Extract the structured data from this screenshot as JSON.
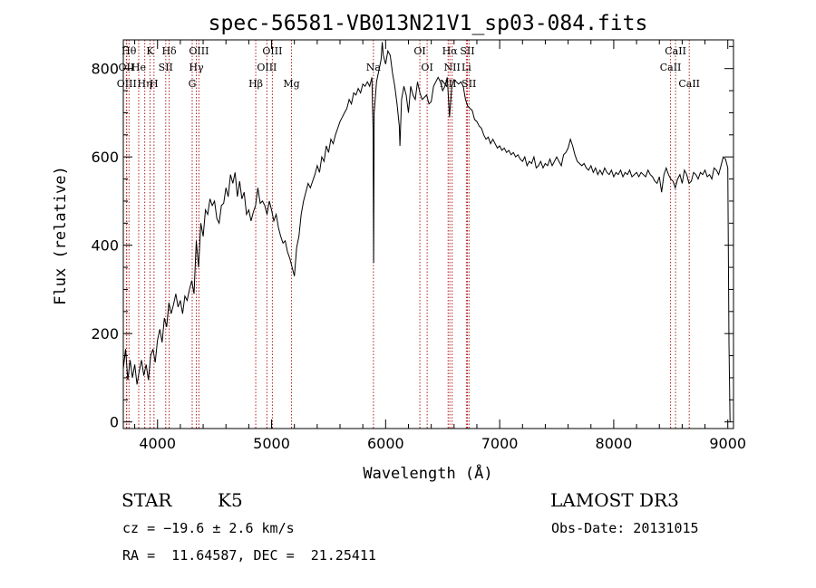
{
  "chart_data": {
    "type": "line",
    "title": "spec-56581-VB013N21V1_sp03-084.fits",
    "xlabel": "Wavelength (Å)",
    "ylabel": "Flux (relative)",
    "xlim": [
      3700,
      9050
    ],
    "ylim": [
      -15,
      865
    ],
    "xticks": [
      4000,
      5000,
      6000,
      7000,
      8000,
      9000
    ],
    "yticks": [
      0,
      200,
      400,
      600,
      800
    ],
    "grid": false,
    "series": [
      {
        "points": [
          [
            3700,
            120
          ],
          [
            3720,
            165
          ],
          [
            3740,
            95
          ],
          [
            3760,
            140
          ],
          [
            3780,
            100
          ],
          [
            3800,
            130
          ],
          [
            3820,
            85
          ],
          [
            3840,
            115
          ],
          [
            3860,
            140
          ],
          [
            3880,
            105
          ],
          [
            3900,
            130
          ],
          [
            3920,
            95
          ],
          [
            3940,
            150
          ],
          [
            3960,
            165
          ],
          [
            3980,
            135
          ],
          [
            4000,
            185
          ],
          [
            4020,
            210
          ],
          [
            4040,
            180
          ],
          [
            4060,
            235
          ],
          [
            4080,
            215
          ],
          [
            4100,
            270
          ],
          [
            4120,
            245
          ],
          [
            4140,
            265
          ],
          [
            4160,
            290
          ],
          [
            4180,
            260
          ],
          [
            4200,
            275
          ],
          [
            4220,
            245
          ],
          [
            4240,
            285
          ],
          [
            4260,
            275
          ],
          [
            4280,
            300
          ],
          [
            4300,
            320
          ],
          [
            4320,
            290
          ],
          [
            4340,
            410
          ],
          [
            4360,
            350
          ],
          [
            4380,
            450
          ],
          [
            4400,
            420
          ],
          [
            4420,
            480
          ],
          [
            4440,
            470
          ],
          [
            4460,
            505
          ],
          [
            4480,
            490
          ],
          [
            4500,
            500
          ],
          [
            4520,
            460
          ],
          [
            4540,
            450
          ],
          [
            4560,
            490
          ],
          [
            4580,
            495
          ],
          [
            4600,
            530
          ],
          [
            4620,
            510
          ],
          [
            4640,
            560
          ],
          [
            4660,
            540
          ],
          [
            4680,
            565
          ],
          [
            4700,
            510
          ],
          [
            4720,
            545
          ],
          [
            4740,
            505
          ],
          [
            4760,
            520
          ],
          [
            4780,
            470
          ],
          [
            4800,
            480
          ],
          [
            4820,
            455
          ],
          [
            4840,
            475
          ],
          [
            4860,
            490
          ],
          [
            4880,
            530
          ],
          [
            4900,
            495
          ],
          [
            4920,
            500
          ],
          [
            4940,
            490
          ],
          [
            4960,
            470
          ],
          [
            4980,
            500
          ],
          [
            5000,
            480
          ],
          [
            5020,
            455
          ],
          [
            5040,
            470
          ],
          [
            5060,
            440
          ],
          [
            5080,
            420
          ],
          [
            5100,
            405
          ],
          [
            5120,
            410
          ],
          [
            5140,
            385
          ],
          [
            5160,
            370
          ],
          [
            5180,
            350
          ],
          [
            5200,
            330
          ],
          [
            5220,
            395
          ],
          [
            5240,
            420
          ],
          [
            5260,
            470
          ],
          [
            5280,
            500
          ],
          [
            5300,
            520
          ],
          [
            5320,
            540
          ],
          [
            5340,
            530
          ],
          [
            5360,
            545
          ],
          [
            5380,
            560
          ],
          [
            5400,
            580
          ],
          [
            5420,
            565
          ],
          [
            5440,
            600
          ],
          [
            5460,
            590
          ],
          [
            5480,
            625
          ],
          [
            5500,
            610
          ],
          [
            5520,
            640
          ],
          [
            5540,
            630
          ],
          [
            5560,
            650
          ],
          [
            5580,
            665
          ],
          [
            5600,
            680
          ],
          [
            5620,
            690
          ],
          [
            5640,
            700
          ],
          [
            5660,
            710
          ],
          [
            5680,
            730
          ],
          [
            5700,
            720
          ],
          [
            5720,
            745
          ],
          [
            5740,
            740
          ],
          [
            5760,
            755
          ],
          [
            5780,
            745
          ],
          [
            5800,
            765
          ],
          [
            5820,
            760
          ],
          [
            5840,
            770
          ],
          [
            5860,
            760
          ],
          [
            5880,
            780
          ],
          [
            5890,
            660
          ],
          [
            5895,
            360
          ],
          [
            5900,
            700
          ],
          [
            5920,
            770
          ],
          [
            5940,
            795
          ],
          [
            5960,
            820
          ],
          [
            5970,
            860
          ],
          [
            5980,
            830
          ],
          [
            6000,
            810
          ],
          [
            6020,
            840
          ],
          [
            6040,
            830
          ],
          [
            6060,
            790
          ],
          [
            6080,
            760
          ],
          [
            6100,
            720
          ],
          [
            6120,
            670
          ],
          [
            6125,
            625
          ],
          [
            6140,
            730
          ],
          [
            6160,
            760
          ],
          [
            6180,
            740
          ],
          [
            6200,
            700
          ],
          [
            6220,
            760
          ],
          [
            6240,
            740
          ],
          [
            6260,
            730
          ],
          [
            6280,
            770
          ],
          [
            6300,
            745
          ],
          [
            6320,
            730
          ],
          [
            6340,
            735
          ],
          [
            6360,
            740
          ],
          [
            6380,
            720
          ],
          [
            6400,
            725
          ],
          [
            6420,
            760
          ],
          [
            6440,
            770
          ],
          [
            6460,
            780
          ],
          [
            6480,
            770
          ],
          [
            6500,
            750
          ],
          [
            6520,
            760
          ],
          [
            6540,
            780
          ],
          [
            6560,
            690
          ],
          [
            6580,
            760
          ],
          [
            6600,
            775
          ],
          [
            6620,
            770
          ],
          [
            6640,
            765
          ],
          [
            6660,
            770
          ],
          [
            6680,
            760
          ],
          [
            6700,
            730
          ],
          [
            6720,
            715
          ],
          [
            6740,
            710
          ],
          [
            6760,
            705
          ],
          [
            6780,
            685
          ],
          [
            6800,
            680
          ],
          [
            6820,
            670
          ],
          [
            6840,
            665
          ],
          [
            6860,
            650
          ],
          [
            6880,
            640
          ],
          [
            6900,
            645
          ],
          [
            6920,
            630
          ],
          [
            6940,
            640
          ],
          [
            6960,
            630
          ],
          [
            6980,
            620
          ],
          [
            7000,
            625
          ],
          [
            7020,
            615
          ],
          [
            7040,
            620
          ],
          [
            7060,
            610
          ],
          [
            7080,
            615
          ],
          [
            7100,
            605
          ],
          [
            7120,
            610
          ],
          [
            7140,
            600
          ],
          [
            7160,
            605
          ],
          [
            7180,
            595
          ],
          [
            7200,
            590
          ],
          [
            7220,
            600
          ],
          [
            7240,
            580
          ],
          [
            7260,
            590
          ],
          [
            7280,
            585
          ],
          [
            7300,
            600
          ],
          [
            7320,
            575
          ],
          [
            7340,
            580
          ],
          [
            7360,
            590
          ],
          [
            7380,
            575
          ],
          [
            7400,
            585
          ],
          [
            7420,
            580
          ],
          [
            7440,
            595
          ],
          [
            7460,
            580
          ],
          [
            7480,
            590
          ],
          [
            7500,
            600
          ],
          [
            7520,
            590
          ],
          [
            7540,
            580
          ],
          [
            7560,
            605
          ],
          [
            7580,
            610
          ],
          [
            7600,
            620
          ],
          [
            7620,
            640
          ],
          [
            7640,
            625
          ],
          [
            7660,
            605
          ],
          [
            7680,
            590
          ],
          [
            7700,
            585
          ],
          [
            7720,
            580
          ],
          [
            7740,
            585
          ],
          [
            7760,
            575
          ],
          [
            7780,
            570
          ],
          [
            7800,
            580
          ],
          [
            7820,
            565
          ],
          [
            7840,
            575
          ],
          [
            7860,
            560
          ],
          [
            7880,
            570
          ],
          [
            7900,
            560
          ],
          [
            7920,
            575
          ],
          [
            7940,
            565
          ],
          [
            7960,
            560
          ],
          [
            7980,
            570
          ],
          [
            8000,
            555
          ],
          [
            8020,
            565
          ],
          [
            8040,
            560
          ],
          [
            8060,
            570
          ],
          [
            8080,
            555
          ],
          [
            8100,
            565
          ],
          [
            8120,
            560
          ],
          [
            8140,
            570
          ],
          [
            8160,
            555
          ],
          [
            8180,
            560
          ],
          [
            8200,
            565
          ],
          [
            8220,
            555
          ],
          [
            8240,
            565
          ],
          [
            8260,
            560
          ],
          [
            8280,
            555
          ],
          [
            8300,
            570
          ],
          [
            8320,
            560
          ],
          [
            8340,
            555
          ],
          [
            8360,
            545
          ],
          [
            8380,
            540
          ],
          [
            8400,
            555
          ],
          [
            8420,
            520
          ],
          [
            8440,
            560
          ],
          [
            8460,
            575
          ],
          [
            8480,
            560
          ],
          [
            8500,
            550
          ],
          [
            8520,
            545
          ],
          [
            8540,
            530
          ],
          [
            8560,
            550
          ],
          [
            8580,
            560
          ],
          [
            8600,
            540
          ],
          [
            8620,
            570
          ],
          [
            8640,
            560
          ],
          [
            8660,
            540
          ],
          [
            8680,
            545
          ],
          [
            8700,
            565
          ],
          [
            8720,
            560
          ],
          [
            8740,
            550
          ],
          [
            8760,
            565
          ],
          [
            8780,
            560
          ],
          [
            8800,
            570
          ],
          [
            8820,
            555
          ],
          [
            8840,
            560
          ],
          [
            8860,
            550
          ],
          [
            8880,
            575
          ],
          [
            8900,
            570
          ],
          [
            8920,
            560
          ],
          [
            8940,
            580
          ],
          [
            8960,
            600
          ],
          [
            8980,
            595
          ],
          [
            9000,
            575
          ],
          [
            9010,
            180
          ],
          [
            9020,
            0
          ]
        ]
      }
    ],
    "lines": [
      {
        "wl": 3750,
        "label": "Hθ",
        "row": 0
      },
      {
        "wl": 3727,
        "label": "OII",
        "row": 1
      },
      {
        "wl": 3730,
        "label": "OIII",
        "row": 2
      },
      {
        "wl": 3835,
        "label": "He",
        "row": 1
      },
      {
        "wl": 3888,
        "label": "Hη",
        "row": 2
      },
      {
        "wl": 3934,
        "label": "K",
        "row": 0
      },
      {
        "wl": 3969,
        "label": "H",
        "row": 2
      },
      {
        "wl": 4072,
        "label": "SII",
        "row": 1
      },
      {
        "wl": 4102,
        "label": "Hδ",
        "row": 0
      },
      {
        "wl": 4304,
        "label": "G",
        "row": 2
      },
      {
        "wl": 4340,
        "label": "Hγ",
        "row": 1
      },
      {
        "wl": 4363,
        "label": "OIII",
        "row": 0
      },
      {
        "wl": 4861,
        "label": "Hβ",
        "row": 2
      },
      {
        "wl": 4959,
        "label": "OIII",
        "row": 1
      },
      {
        "wl": 5007,
        "label": "OIII",
        "row": 0
      },
      {
        "wl": 5175,
        "label": "Mg",
        "row": 2
      },
      {
        "wl": 5893,
        "label": "Na",
        "row": 1
      },
      {
        "wl": 6300,
        "label": "OI",
        "row": 0
      },
      {
        "wl": 6364,
        "label": "OI",
        "row": 1
      },
      {
        "wl": 6548,
        "label": "NII",
        "row": 2
      },
      {
        "wl": 6563,
        "label": "Hα",
        "row": 0
      },
      {
        "wl": 6583,
        "label": "NII",
        "row": 1
      },
      {
        "wl": 6708,
        "label": "Li",
        "row": 1
      },
      {
        "wl": 6717,
        "label": "SII",
        "row": 0
      },
      {
        "wl": 6731,
        "label": "SII",
        "row": 2
      },
      {
        "wl": 8498,
        "label": "CaII",
        "row": 1
      },
      {
        "wl": 8542,
        "label": "CaII",
        "row": 0
      },
      {
        "wl": 8662,
        "label": "CaII",
        "row": 2
      }
    ]
  },
  "info": {
    "class": "STAR",
    "subclass": "K5",
    "survey": "LAMOST DR3",
    "redshift": "cz = −19.6 ± 2.6 km/s",
    "obs_date": "Obs-Date: 20131015",
    "coords": "RA =  11.64587, DEC =  21.25411"
  },
  "colors": {
    "spectrum": "#000000",
    "line_marker": "#b22222"
  }
}
